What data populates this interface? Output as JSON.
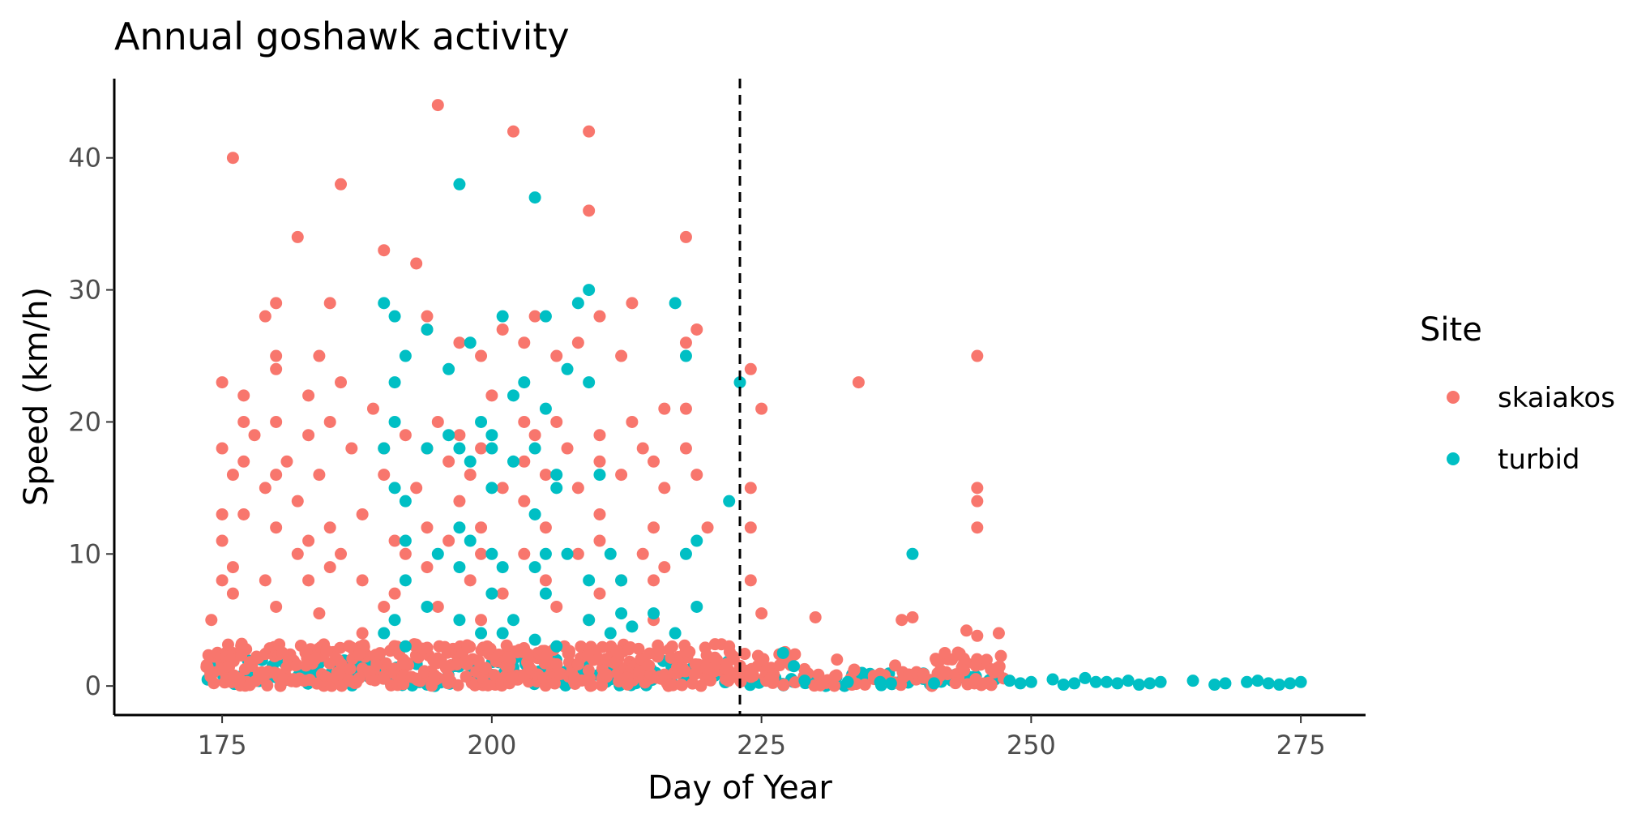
{
  "chart_data": {
    "type": "scatter",
    "title": "Annual goshawk activity",
    "xlabel": "Day of Year",
    "ylabel": "Speed (km/h)",
    "xlim": [
      165,
      281
    ],
    "ylim": [
      -2.2,
      46
    ],
    "xticks": [
      175,
      200,
      225,
      250,
      275
    ],
    "yticks": [
      0,
      10,
      20,
      30,
      40
    ],
    "grid": false,
    "vline": {
      "x": 223,
      "style": "dashed"
    },
    "legend": {
      "title": "Site",
      "position": "right"
    },
    "series": [
      {
        "name": "skaiakos",
        "color": "#F8766D",
        "points": [
          [
            176,
            40
          ],
          [
            182,
            34
          ],
          [
            186,
            38
          ],
          [
            195,
            44
          ],
          [
            202,
            42
          ],
          [
            209,
            42
          ],
          [
            209,
            36
          ],
          [
            218,
            34
          ],
          [
            190,
            33
          ],
          [
            193,
            32
          ],
          [
            180,
            29
          ],
          [
            185,
            29
          ],
          [
            213,
            29
          ],
          [
            179,
            28
          ],
          [
            194,
            28
          ],
          [
            201,
            27
          ],
          [
            204,
            28
          ],
          [
            210,
            28
          ],
          [
            219,
            27
          ],
          [
            194,
            27
          ],
          [
            197,
            26
          ],
          [
            203,
            26
          ],
          [
            218,
            26
          ],
          [
            208,
            26
          ],
          [
            180,
            25
          ],
          [
            184,
            25
          ],
          [
            199,
            25
          ],
          [
            206,
            25
          ],
          [
            212,
            25
          ],
          [
            234,
            23
          ],
          [
            245,
            25
          ],
          [
            224,
            24
          ],
          [
            180,
            24
          ],
          [
            186,
            23
          ],
          [
            175,
            23
          ],
          [
            183,
            22
          ],
          [
            177,
            22
          ],
          [
            200,
            22
          ],
          [
            225,
            21
          ],
          [
            216,
            21
          ],
          [
            218,
            21
          ],
          [
            189,
            21
          ],
          [
            195,
            20
          ],
          [
            203,
            20
          ],
          [
            177,
            20
          ],
          [
            180,
            20
          ],
          [
            185,
            20
          ],
          [
            206,
            20
          ],
          [
            213,
            20
          ],
          [
            192,
            19
          ],
          [
            204,
            19
          ],
          [
            197,
            19
          ],
          [
            210,
            19
          ],
          [
            178,
            19
          ],
          [
            183,
            19
          ],
          [
            190,
            18
          ],
          [
            175,
            18
          ],
          [
            194,
            18
          ],
          [
            199,
            18
          ],
          [
            214,
            18
          ],
          [
            218,
            18
          ],
          [
            187,
            18
          ],
          [
            207,
            18
          ],
          [
            181,
            17
          ],
          [
            196,
            17
          ],
          [
            177,
            17
          ],
          [
            215,
            17
          ],
          [
            203,
            17
          ],
          [
            210,
            17
          ],
          [
            224,
            15
          ],
          [
            245,
            15
          ],
          [
            180,
            16
          ],
          [
            184,
            16
          ],
          [
            198,
            16
          ],
          [
            205,
            16
          ],
          [
            212,
            16
          ],
          [
            219,
            16
          ],
          [
            176,
            16
          ],
          [
            190,
            16
          ],
          [
            193,
            15
          ],
          [
            179,
            15
          ],
          [
            201,
            15
          ],
          [
            208,
            15
          ],
          [
            216,
            15
          ],
          [
            182,
            14
          ],
          [
            197,
            14
          ],
          [
            203,
            14
          ],
          [
            245,
            14
          ],
          [
            175,
            13
          ],
          [
            188,
            13
          ],
          [
            210,
            13
          ],
          [
            224,
            12
          ],
          [
            245,
            12
          ],
          [
            177,
            13
          ],
          [
            185,
            12
          ],
          [
            194,
            12
          ],
          [
            199,
            12
          ],
          [
            205,
            12
          ],
          [
            180,
            12
          ],
          [
            215,
            12
          ],
          [
            220,
            12
          ],
          [
            183,
            11
          ],
          [
            191,
            11
          ],
          [
            196,
            11
          ],
          [
            175,
            11
          ],
          [
            210,
            11
          ],
          [
            186,
            10
          ],
          [
            199,
            10
          ],
          [
            203,
            10
          ],
          [
            208,
            10
          ],
          [
            214,
            10
          ],
          [
            182,
            10
          ],
          [
            192,
            10
          ],
          [
            176,
            9
          ],
          [
            185,
            9
          ],
          [
            194,
            9
          ],
          [
            216,
            9
          ],
          [
            188,
            8
          ],
          [
            198,
            8
          ],
          [
            205,
            8
          ],
          [
            212,
            8
          ],
          [
            224,
            8
          ],
          [
            175,
            8
          ],
          [
            179,
            8
          ],
          [
            183,
            8
          ],
          [
            215,
            8
          ],
          [
            191,
            7
          ],
          [
            201,
            7
          ],
          [
            210,
            7
          ],
          [
            176,
            7
          ],
          [
            180,
            6
          ],
          [
            190,
            6
          ],
          [
            195,
            6
          ],
          [
            206,
            6
          ],
          [
            225,
            5.5
          ],
          [
            230,
            5.2
          ],
          [
            238,
            5
          ],
          [
            239,
            5.2
          ],
          [
            184,
            5.5
          ],
          [
            209,
            5
          ],
          [
            174,
            5
          ],
          [
            215,
            5
          ],
          [
            244,
            4.2
          ],
          [
            247,
            4
          ],
          [
            245,
            3.8
          ],
          [
            199,
            5
          ],
          [
            188,
            4
          ],
          [
            222,
            3
          ],
          [
            232,
            2
          ],
          [
            242,
            2.5
          ]
        ]
      },
      {
        "name": "turbid",
        "color": "#00BFC4",
        "points": [
          [
            197,
            38
          ],
          [
            204,
            37
          ],
          [
            209,
            30
          ],
          [
            190,
            29
          ],
          [
            217,
            29
          ],
          [
            191,
            28
          ],
          [
            201,
            28
          ],
          [
            205,
            28
          ],
          [
            208,
            29
          ],
          [
            194,
            27
          ],
          [
            198,
            26
          ],
          [
            192,
            25
          ],
          [
            218,
            25
          ],
          [
            196,
            24
          ],
          [
            207,
            24
          ],
          [
            202,
            22
          ],
          [
            223,
            23
          ],
          [
            191,
            23
          ],
          [
            203,
            23
          ],
          [
            209,
            23
          ],
          [
            199,
            20
          ],
          [
            191,
            20
          ],
          [
            205,
            21
          ],
          [
            196,
            19
          ],
          [
            200,
            19
          ],
          [
            190,
            18
          ],
          [
            200,
            18
          ],
          [
            194,
            18
          ],
          [
            197,
            18
          ],
          [
            204,
            18
          ],
          [
            222,
            14
          ],
          [
            191,
            15
          ],
          [
            198,
            17
          ],
          [
            202,
            17
          ],
          [
            206,
            16
          ],
          [
            210,
            16
          ],
          [
            200,
            15
          ],
          [
            192,
            14
          ],
          [
            206,
            15
          ],
          [
            204,
            13
          ],
          [
            197,
            12
          ],
          [
            218,
            10
          ],
          [
            239,
            10
          ],
          [
            192,
            11
          ],
          [
            198,
            11
          ],
          [
            219,
            11
          ],
          [
            205,
            10
          ],
          [
            195,
            10
          ],
          [
            200,
            10
          ],
          [
            207,
            10
          ],
          [
            211,
            10
          ],
          [
            204,
            9
          ],
          [
            197,
            9
          ],
          [
            201,
            9
          ],
          [
            209,
            8
          ],
          [
            212,
            8
          ],
          [
            192,
            8
          ],
          [
            200,
            7
          ],
          [
            205,
            7
          ],
          [
            219,
            6
          ],
          [
            212,
            5.5
          ],
          [
            191,
            5
          ],
          [
            197,
            5
          ],
          [
            202,
            5
          ],
          [
            194,
            6
          ],
          [
            209,
            5
          ],
          [
            215,
            5.5
          ],
          [
            217,
            4
          ],
          [
            201,
            4
          ],
          [
            204,
            3.5
          ],
          [
            206,
            3
          ],
          [
            211,
            4
          ],
          [
            213,
            4.5
          ],
          [
            192,
            3
          ],
          [
            190,
            4
          ],
          [
            199,
            4
          ],
          [
            248,
            0.4
          ],
          [
            250,
            0.3
          ],
          [
            252,
            0.5
          ],
          [
            254,
            0.2
          ],
          [
            255,
            0.6
          ],
          [
            256,
            0.3
          ],
          [
            258,
            0.2
          ],
          [
            259,
            0.4
          ],
          [
            260,
            0.1
          ],
          [
            261,
            0.2
          ],
          [
            262,
            0.3
          ],
          [
            265,
            0.4
          ],
          [
            267,
            0.1
          ],
          [
            268,
            0.2
          ],
          [
            270,
            0.3
          ],
          [
            271,
            0.4
          ],
          [
            272,
            0.2
          ],
          [
            273,
            0.1
          ],
          [
            274,
            0.2
          ],
          [
            275,
            0.3
          ],
          [
            249,
            0.2
          ],
          [
            253,
            0.1
          ],
          [
            257,
            0.3
          ],
          [
            236,
            0.3
          ],
          [
            237,
            0.2
          ],
          [
            241,
            0.2
          ],
          [
            229,
            0.4
          ],
          [
            233,
            0.3
          ],
          [
            227,
            2.5
          ],
          [
            228,
            1.5
          ]
        ]
      }
    ]
  }
}
